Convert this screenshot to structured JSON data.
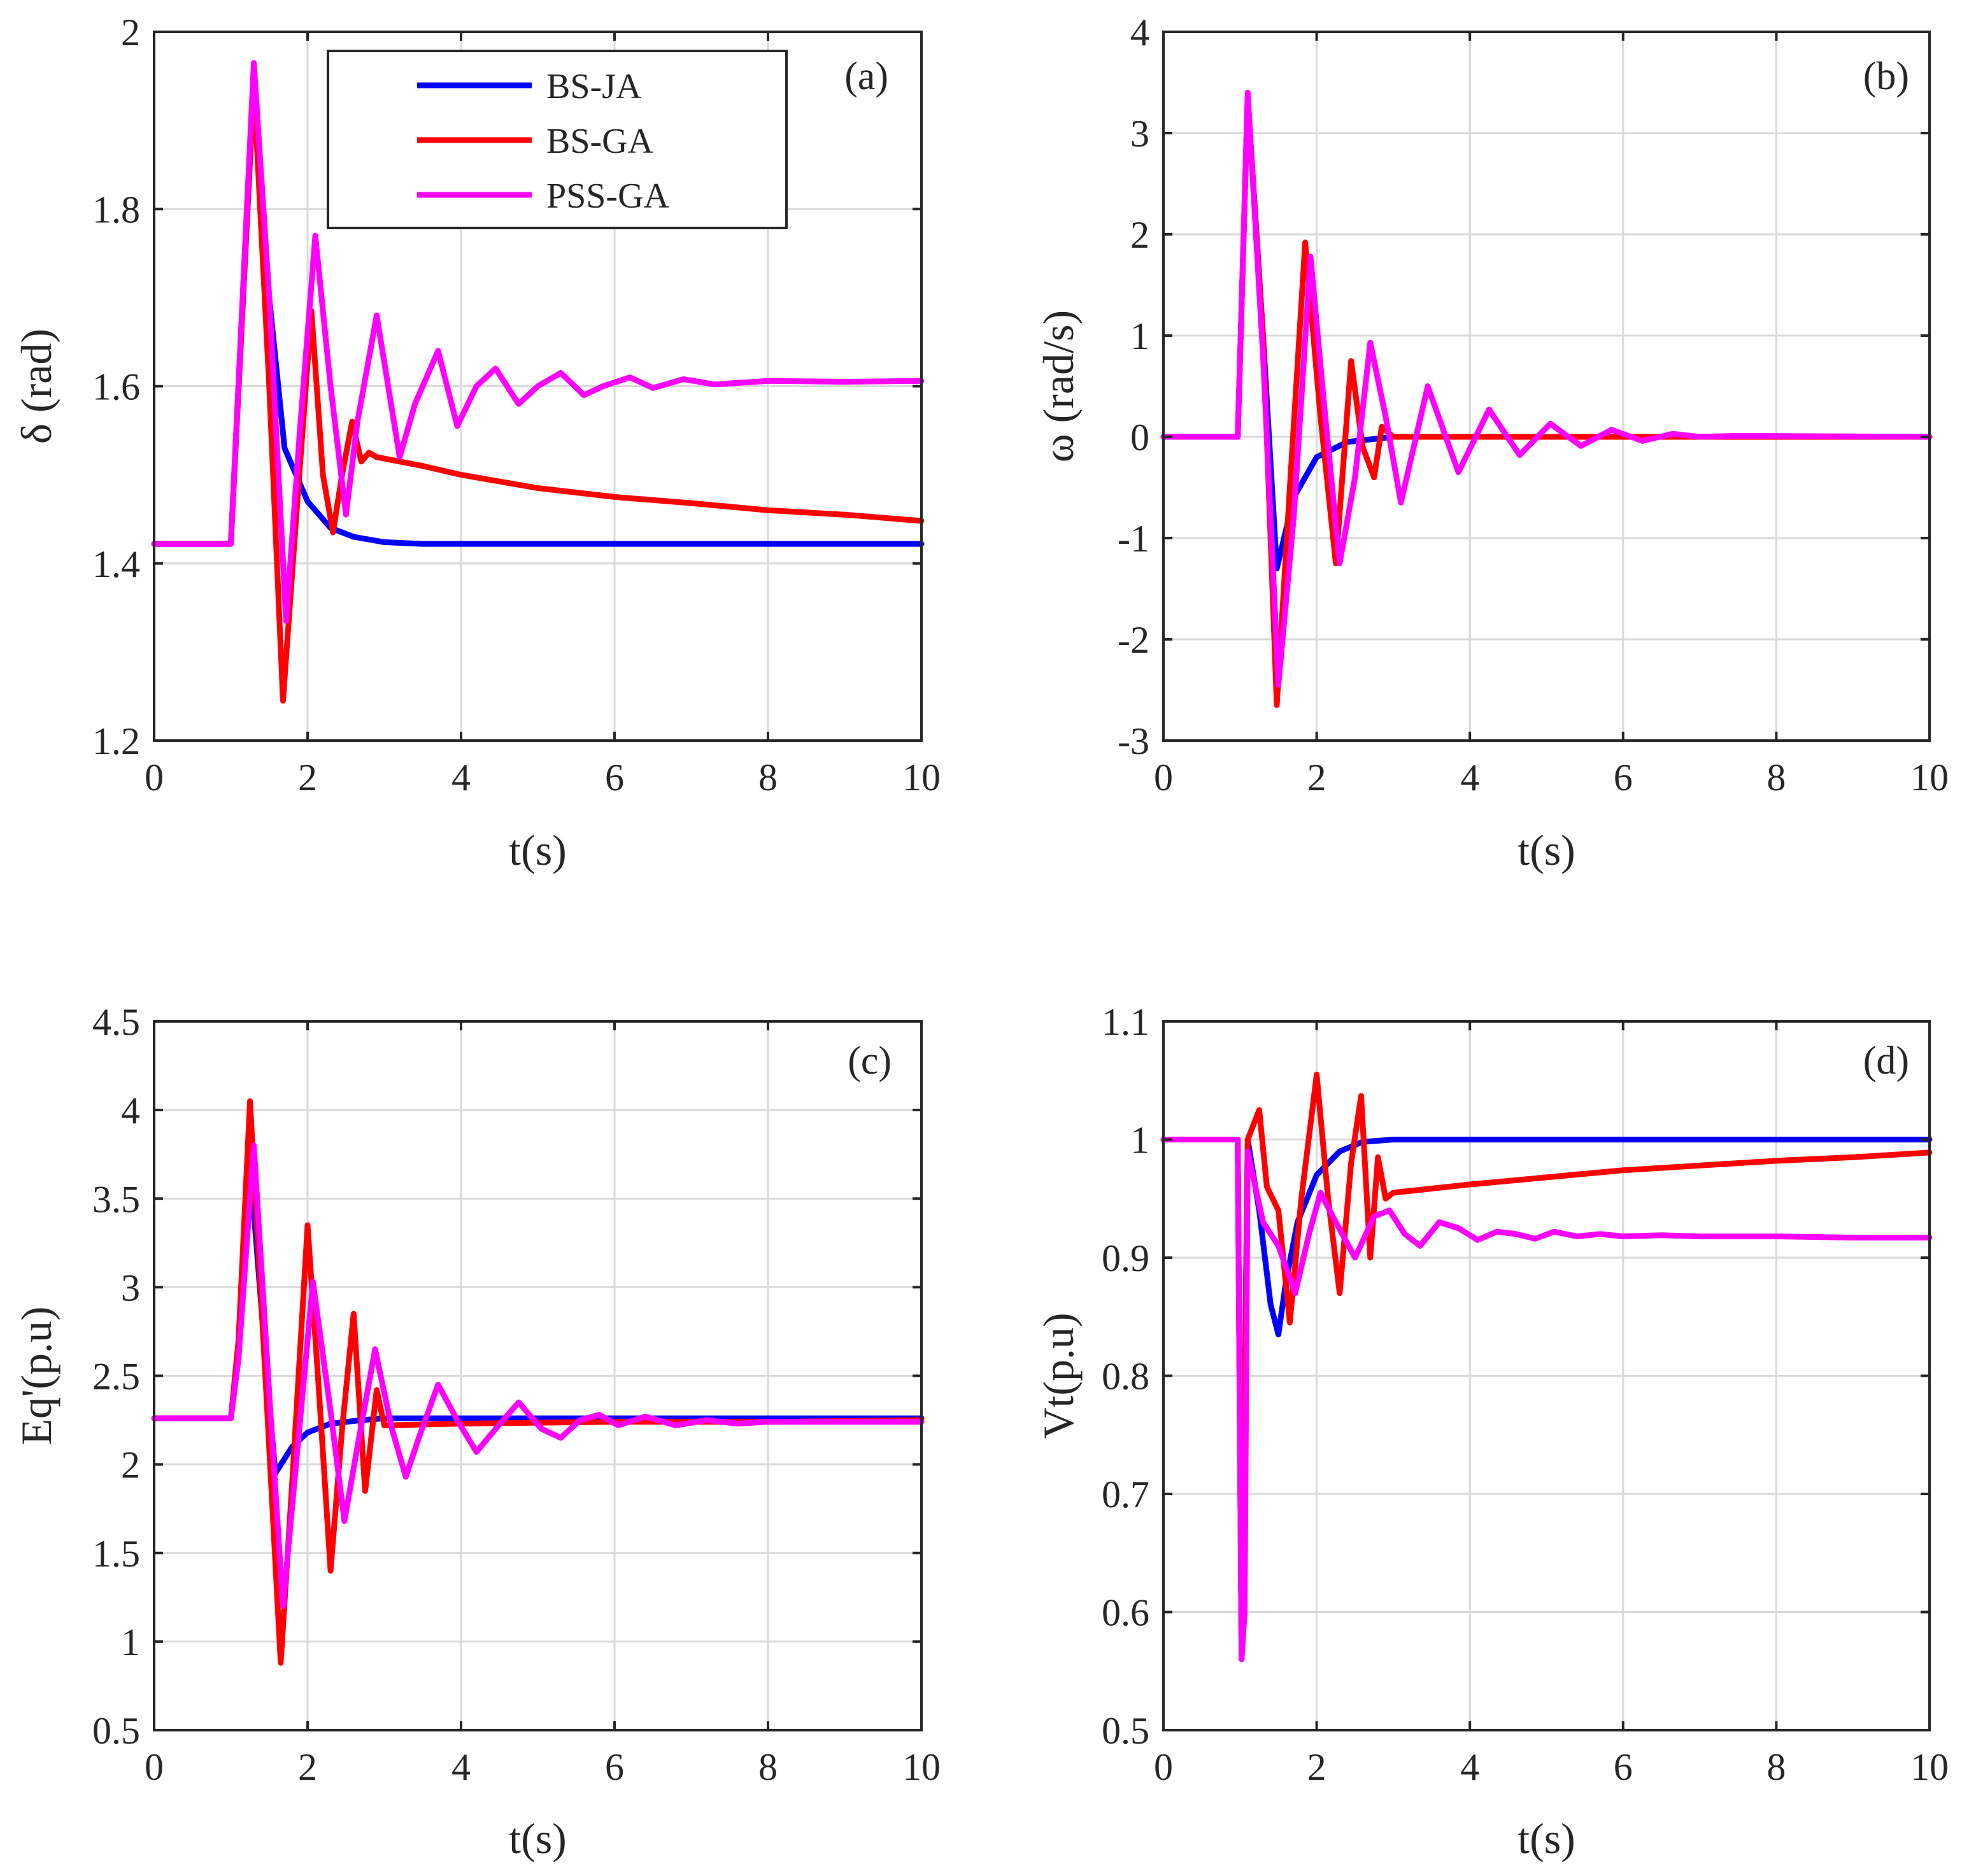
{
  "chart_data": [
    {
      "type": "line",
      "panel": "(a)",
      "xlabel": "t(s)",
      "ylabel": "δ (rad)",
      "xlim": [
        0,
        10
      ],
      "ylim": [
        1.2,
        2
      ],
      "xticks": [
        "0",
        "2",
        "4",
        "6",
        "8",
        "10"
      ],
      "yticks": [
        "1.2",
        "1.4",
        "1.6",
        "1.8",
        "2"
      ],
      "grid": true,
      "legend": {
        "placement": "top-center",
        "entries": [
          {
            "name": "BS-JA",
            "color": "#0000ff"
          },
          {
            "name": "BS-GA",
            "color": "#ff0000"
          },
          {
            "name": "PSS-GA",
            "color": "#ff00ff"
          }
        ]
      },
      "series": [
        {
          "name": "BS-JA",
          "color": "#0000ff",
          "x": [
            0,
            1,
            1.3,
            1.5,
            1.7,
            2.0,
            2.3,
            2.6,
            3.0,
            3.5,
            4,
            6,
            8,
            10
          ],
          "y": [
            1.422,
            1.422,
            1.96,
            1.7,
            1.53,
            1.47,
            1.44,
            1.43,
            1.424,
            1.422,
            1.422,
            1.422,
            1.422,
            1.422
          ]
        },
        {
          "name": "BS-GA",
          "color": "#ff0000",
          "x": [
            0,
            1,
            1.3,
            1.5,
            1.68,
            1.85,
            2.05,
            2.2,
            2.33,
            2.45,
            2.58,
            2.7,
            2.8,
            2.9,
            3.5,
            4,
            5,
            6,
            7,
            8,
            9,
            10
          ],
          "y": [
            1.422,
            1.422,
            1.94,
            1.6,
            1.245,
            1.45,
            1.685,
            1.5,
            1.435,
            1.5,
            1.56,
            1.515,
            1.525,
            1.52,
            1.51,
            1.5,
            1.485,
            1.475,
            1.468,
            1.46,
            1.455,
            1.448
          ]
        },
        {
          "name": "PSS-GA",
          "color": "#ff00ff",
          "x": [
            0,
            1,
            1.3,
            1.5,
            1.72,
            1.9,
            2.1,
            2.3,
            2.5,
            2.65,
            2.9,
            3.2,
            3.4,
            3.7,
            3.95,
            4.2,
            4.45,
            4.75,
            5.0,
            5.3,
            5.6,
            5.85,
            6.2,
            6.5,
            6.9,
            7.3,
            8,
            9,
            10
          ],
          "y": [
            1.422,
            1.422,
            1.965,
            1.7,
            1.335,
            1.55,
            1.77,
            1.6,
            1.455,
            1.56,
            1.68,
            1.52,
            1.58,
            1.64,
            1.555,
            1.6,
            1.62,
            1.58,
            1.6,
            1.615,
            1.59,
            1.6,
            1.61,
            1.598,
            1.608,
            1.602,
            1.606,
            1.605,
            1.606
          ]
        }
      ]
    },
    {
      "type": "line",
      "panel": "(b)",
      "xlabel": "t(s)",
      "ylabel": "ω (rad/s)",
      "xlim": [
        0,
        10
      ],
      "ylim": [
        -3,
        4
      ],
      "xticks": [
        "0",
        "2",
        "4",
        "6",
        "8",
        "10"
      ],
      "yticks": [
        "-3",
        "-2",
        "-1",
        "0",
        "1",
        "2",
        "3",
        "4"
      ],
      "grid": true,
      "series": [
        {
          "name": "BS-JA",
          "color": "#0000ff",
          "x": [
            0,
            0.97,
            1.1,
            1.3,
            1.48,
            1.7,
            2.0,
            2.4,
            3.0,
            10
          ],
          "y": [
            0,
            0,
            3.35,
            1.0,
            -1.3,
            -0.6,
            -0.2,
            -0.05,
            0,
            0
          ]
        },
        {
          "name": "BS-GA",
          "color": "#ff0000",
          "x": [
            0,
            0.97,
            1.1,
            1.3,
            1.48,
            1.65,
            1.85,
            2.05,
            2.25,
            2.45,
            2.6,
            2.75,
            2.85,
            3.0,
            10
          ],
          "y": [
            0,
            0,
            3.35,
            1.0,
            -2.65,
            -0.5,
            1.92,
            0.2,
            -1.25,
            0.75,
            -0.1,
            -0.4,
            0.1,
            0,
            0
          ]
        },
        {
          "name": "PSS-GA",
          "color": "#ff00ff",
          "x": [
            0,
            0.97,
            1.1,
            1.3,
            1.5,
            1.7,
            1.92,
            2.1,
            2.3,
            2.5,
            2.7,
            2.9,
            3.1,
            3.45,
            3.85,
            4.25,
            4.65,
            5.05,
            5.45,
            5.85,
            6.25,
            6.65,
            7.0,
            7.5,
            10
          ],
          "y": [
            0,
            0,
            3.4,
            0.8,
            -2.45,
            -0.8,
            1.78,
            0.3,
            -1.25,
            -0.4,
            0.93,
            0.2,
            -0.65,
            0.5,
            -0.35,
            0.27,
            -0.18,
            0.13,
            -0.09,
            0.07,
            -0.04,
            0.03,
            0,
            0.01,
            0
          ]
        }
      ]
    },
    {
      "type": "line",
      "panel": "(c)",
      "xlabel": "t(s)",
      "ylabel": "Eq'(p.u)",
      "xlim": [
        0,
        10
      ],
      "ylim": [
        0.5,
        4.5
      ],
      "xticks": [
        "0",
        "2",
        "4",
        "6",
        "8",
        "10"
      ],
      "yticks": [
        "0.5",
        "1",
        "1.5",
        "2",
        "2.5",
        "3",
        "3.5",
        "4",
        "4.5"
      ],
      "grid": true,
      "series": [
        {
          "name": "BS-JA",
          "color": "#0000ff",
          "x": [
            0,
            1,
            1.1,
            1.25,
            1.45,
            1.58,
            1.8,
            2.0,
            2.3,
            2.7,
            3.0,
            4,
            10
          ],
          "y": [
            2.26,
            2.26,
            2.6,
            3.7,
            2.6,
            1.95,
            2.1,
            2.18,
            2.23,
            2.25,
            2.26,
            2.26,
            2.26
          ]
        },
        {
          "name": "BS-GA",
          "color": "#ff0000",
          "x": [
            0,
            1,
            1.1,
            1.25,
            1.45,
            1.65,
            1.8,
            2.0,
            2.15,
            2.3,
            2.45,
            2.6,
            2.75,
            2.9,
            3.0,
            4,
            6,
            8,
            10
          ],
          "y": [
            2.26,
            2.26,
            2.7,
            4.05,
            2.5,
            0.88,
            1.9,
            3.35,
            2.4,
            1.4,
            2.2,
            2.85,
            1.85,
            2.42,
            2.22,
            2.23,
            2.24,
            2.24,
            2.25
          ]
        },
        {
          "name": "PSS-GA",
          "color": "#ff00ff",
          "x": [
            0,
            1,
            1.1,
            1.3,
            1.5,
            1.68,
            1.85,
            2.07,
            2.3,
            2.48,
            2.65,
            2.88,
            3.1,
            3.28,
            3.45,
            3.7,
            3.95,
            4.2,
            4.45,
            4.75,
            5.05,
            5.3,
            5.55,
            5.8,
            6.05,
            6.4,
            6.8,
            7.2,
            7.6,
            8,
            9,
            10
          ],
          "y": [
            2.26,
            2.26,
            2.6,
            3.8,
            2.4,
            1.2,
            2.0,
            3.03,
            2.3,
            1.68,
            2.1,
            2.65,
            2.2,
            1.93,
            2.15,
            2.45,
            2.25,
            2.07,
            2.2,
            2.35,
            2.2,
            2.15,
            2.25,
            2.28,
            2.22,
            2.27,
            2.22,
            2.25,
            2.23,
            2.24,
            2.24,
            2.24
          ]
        }
      ]
    },
    {
      "type": "line",
      "panel": "(d)",
      "xlabel": "t(s)",
      "ylabel": "Vt(p.u)",
      "xlim": [
        0,
        10
      ],
      "ylim": [
        0.5,
        1.1
      ],
      "xticks": [
        "0",
        "2",
        "4",
        "6",
        "8",
        "10"
      ],
      "yticks": [
        "0.5",
        "0.6",
        "0.7",
        "0.8",
        "0.9",
        "1",
        "1.1"
      ],
      "grid": true,
      "series": [
        {
          "name": "BS-JA",
          "color": "#0000ff",
          "x": [
            0,
            0.97,
            1.02,
            1.1,
            1.25,
            1.4,
            1.5,
            1.6,
            1.75,
            2.0,
            2.3,
            2.6,
            3.0,
            4,
            10
          ],
          "y": [
            1,
            1,
            0.56,
            1.0,
            0.94,
            0.86,
            0.835,
            0.88,
            0.93,
            0.97,
            0.99,
            0.998,
            1.0,
            1.0,
            1.0
          ]
        },
        {
          "name": "BS-GA",
          "color": "#ff0000",
          "x": [
            0,
            0.97,
            1.02,
            1.1,
            1.25,
            1.35,
            1.5,
            1.65,
            1.8,
            2.0,
            2.15,
            2.3,
            2.45,
            2.58,
            2.7,
            2.8,
            2.9,
            3.0,
            4,
            5,
            6,
            7,
            8,
            9,
            10
          ],
          "y": [
            1,
            1,
            0.56,
            1.0,
            1.025,
            0.96,
            0.94,
            0.845,
            0.95,
            1.055,
            0.95,
            0.87,
            0.98,
            1.037,
            0.9,
            0.985,
            0.95,
            0.955,
            0.962,
            0.968,
            0.974,
            0.978,
            0.982,
            0.985,
            0.989
          ]
        },
        {
          "name": "PSS-GA",
          "color": "#ff00ff",
          "x": [
            0,
            0.97,
            1.02,
            1.06,
            1.1,
            1.3,
            1.5,
            1.72,
            1.9,
            2.05,
            2.25,
            2.5,
            2.75,
            2.95,
            3.15,
            3.35,
            3.6,
            3.85,
            4.1,
            4.35,
            4.6,
            4.85,
            5.1,
            5.4,
            5.7,
            6.0,
            6.5,
            7,
            8,
            9,
            10
          ],
          "y": [
            1,
            1,
            0.56,
            0.6,
            0.99,
            0.93,
            0.91,
            0.87,
            0.92,
            0.955,
            0.93,
            0.9,
            0.935,
            0.94,
            0.92,
            0.91,
            0.93,
            0.925,
            0.915,
            0.922,
            0.92,
            0.916,
            0.922,
            0.918,
            0.92,
            0.918,
            0.919,
            0.918,
            0.918,
            0.917,
            0.917
          ]
        }
      ]
    }
  ]
}
